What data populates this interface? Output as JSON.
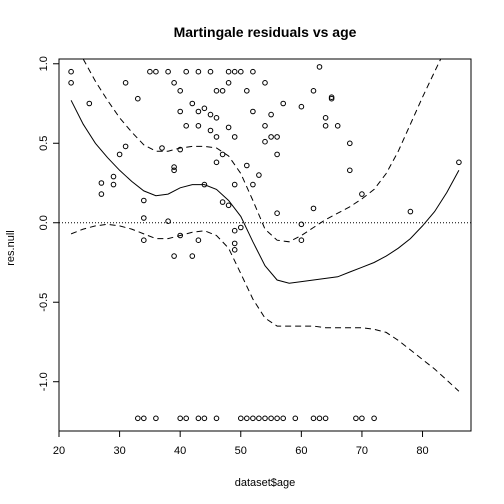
{
  "chart_data": {
    "type": "scatter",
    "title": "Martingale residuals vs age",
    "xlabel": "dataset$age",
    "ylabel": "res.null",
    "xlim": [
      20,
      88
    ],
    "ylim": [
      -1.31,
      1.03
    ],
    "xticks": [
      20,
      30,
      40,
      50,
      60,
      70,
      80
    ],
    "yticks": [
      -1.0,
      -0.5,
      0.0,
      0.5,
      1.0
    ],
    "ytick_labels": [
      "-1.0",
      "-0.5",
      "0.0",
      "0.5",
      "1.0"
    ],
    "grid": false,
    "reference_line": {
      "y": 0.0,
      "style": "dotted"
    },
    "points": [
      [
        22,
        0.95
      ],
      [
        22,
        0.88
      ],
      [
        25,
        0.75
      ],
      [
        27,
        0.25
      ],
      [
        27,
        0.18
      ],
      [
        29,
        0.29
      ],
      [
        29,
        0.24
      ],
      [
        30,
        0.43
      ],
      [
        31,
        0.48
      ],
      [
        31,
        0.88
      ],
      [
        33,
        0.78
      ],
      [
        34,
        0.14
      ],
      [
        34,
        0.03
      ],
      [
        34,
        -0.11
      ],
      [
        35,
        0.95
      ],
      [
        36,
        0.95
      ],
      [
        37,
        0.47
      ],
      [
        38,
        0.95
      ],
      [
        38,
        0.01
      ],
      [
        39,
        0.88
      ],
      [
        39,
        0.35
      ],
      [
        39,
        0.33
      ],
      [
        39,
        -0.21
      ],
      [
        40,
        0.83
      ],
      [
        40,
        0.7
      ],
      [
        40,
        0.46
      ],
      [
        40,
        -0.08
      ],
      [
        41,
        0.95
      ],
      [
        41,
        0.61
      ],
      [
        42,
        0.75
      ],
      [
        42,
        -0.21
      ],
      [
        43,
        0.95
      ],
      [
        43,
        0.7
      ],
      [
        43,
        0.61
      ],
      [
        43,
        -0.11
      ],
      [
        44,
        0.72
      ],
      [
        44,
        0.24
      ],
      [
        45,
        0.95
      ],
      [
        45,
        0.68
      ],
      [
        45,
        0.58
      ],
      [
        46,
        0.83
      ],
      [
        46,
        0.66
      ],
      [
        46,
        0.54
      ],
      [
        46,
        0.38
      ],
      [
        47,
        0.83
      ],
      [
        47,
        0.43
      ],
      [
        47,
        0.13
      ],
      [
        48,
        0.95
      ],
      [
        48,
        0.88
      ],
      [
        48,
        0.6
      ],
      [
        48,
        0.11
      ],
      [
        49,
        0.95
      ],
      [
        49,
        0.54
      ],
      [
        49,
        0.24
      ],
      [
        49,
        -0.05
      ],
      [
        49,
        -0.13
      ],
      [
        49,
        -0.17
      ],
      [
        50,
        0.95
      ],
      [
        50,
        -0.03
      ],
      [
        51,
        0.83
      ],
      [
        51,
        0.36
      ],
      [
        52,
        0.95
      ],
      [
        52,
        0.7
      ],
      [
        52,
        0.24
      ],
      [
        53,
        0.3
      ],
      [
        54,
        0.88
      ],
      [
        54,
        0.61
      ],
      [
        54,
        0.51
      ],
      [
        55,
        0.54
      ],
      [
        55,
        0.68
      ],
      [
        56,
        0.54
      ],
      [
        56,
        0.43
      ],
      [
        56,
        0.06
      ],
      [
        57,
        0.75
      ],
      [
        60,
        0.73
      ],
      [
        60,
        -0.01
      ],
      [
        60,
        -0.11
      ],
      [
        62,
        0.83
      ],
      [
        62,
        0.09
      ],
      [
        63,
        0.98
      ],
      [
        64,
        0.66
      ],
      [
        64,
        0.61
      ],
      [
        65,
        0.79
      ],
      [
        65,
        0.78
      ],
      [
        66,
        0.61
      ],
      [
        68,
        0.5
      ],
      [
        68,
        0.33
      ],
      [
        70,
        0.18
      ],
      [
        78,
        0.07
      ],
      [
        86,
        0.38
      ],
      [
        33,
        -1.23
      ],
      [
        34,
        -1.23
      ],
      [
        36,
        -1.23
      ],
      [
        40,
        -1.23
      ],
      [
        41,
        -1.23
      ],
      [
        43,
        -1.23
      ],
      [
        44,
        -1.23
      ],
      [
        46,
        -1.23
      ],
      [
        50,
        -1.23
      ],
      [
        51,
        -1.23
      ],
      [
        52,
        -1.23
      ],
      [
        53,
        -1.23
      ],
      [
        54,
        -1.23
      ],
      [
        55,
        -1.23
      ],
      [
        56,
        -1.23
      ],
      [
        57,
        -1.23
      ],
      [
        59,
        -1.23
      ],
      [
        62,
        -1.23
      ],
      [
        63,
        -1.23
      ],
      [
        64,
        -1.23
      ],
      [
        69,
        -1.23
      ],
      [
        70,
        -1.23
      ],
      [
        72,
        -1.23
      ]
    ],
    "series": [
      {
        "style": "solid",
        "x": [
          22,
          24,
          26,
          28,
          30,
          32,
          34,
          36,
          38,
          40,
          42,
          44,
          46,
          48,
          50,
          52,
          54,
          56,
          58,
          60,
          62,
          64,
          66,
          68,
          70,
          72,
          74,
          76,
          78,
          80,
          82,
          84,
          86
        ],
        "y": [
          0.77,
          0.62,
          0.5,
          0.41,
          0.33,
          0.26,
          0.2,
          0.17,
          0.18,
          0.22,
          0.24,
          0.24,
          0.21,
          0.14,
          0.04,
          -0.12,
          -0.27,
          -0.36,
          -0.38,
          -0.37,
          -0.36,
          -0.35,
          -0.34,
          -0.31,
          -0.28,
          -0.25,
          -0.21,
          -0.16,
          -0.1,
          -0.02,
          0.07,
          0.19,
          0.33
        ]
      },
      {
        "style": "dashed",
        "x": [
          24,
          26,
          28,
          30,
          32,
          34,
          36,
          38,
          40,
          42,
          44,
          46,
          48,
          50,
          52,
          54,
          56,
          58,
          60,
          62,
          64,
          66,
          68,
          70,
          72,
          74,
          76,
          78,
          80,
          82,
          83
        ],
        "y": [
          1.03,
          0.89,
          0.77,
          0.66,
          0.57,
          0.49,
          0.45,
          0.45,
          0.47,
          0.48,
          0.48,
          0.47,
          0.42,
          0.31,
          0.14,
          -0.04,
          -0.11,
          -0.12,
          -0.08,
          -0.03,
          0.02,
          0.06,
          0.1,
          0.15,
          0.21,
          0.31,
          0.45,
          0.62,
          0.79,
          0.95,
          1.03
        ]
      },
      {
        "style": "dashed",
        "x": [
          22,
          24,
          26,
          28,
          30,
          32,
          34,
          36,
          38,
          40,
          42,
          44,
          46,
          48,
          50,
          52,
          54,
          56,
          58,
          60,
          62,
          64,
          66,
          68,
          70,
          72,
          74,
          76,
          78,
          80,
          82,
          84,
          86
        ],
        "y": [
          -0.07,
          -0.04,
          -0.02,
          -0.01,
          -0.02,
          -0.04,
          -0.07,
          -0.1,
          -0.1,
          -0.08,
          -0.06,
          -0.05,
          -0.08,
          -0.16,
          -0.32,
          -0.48,
          -0.6,
          -0.65,
          -0.65,
          -0.65,
          -0.65,
          -0.66,
          -0.66,
          -0.66,
          -0.66,
          -0.67,
          -0.69,
          -0.74,
          -0.8,
          -0.86,
          -0.92,
          -0.99,
          -1.06
        ]
      }
    ]
  }
}
